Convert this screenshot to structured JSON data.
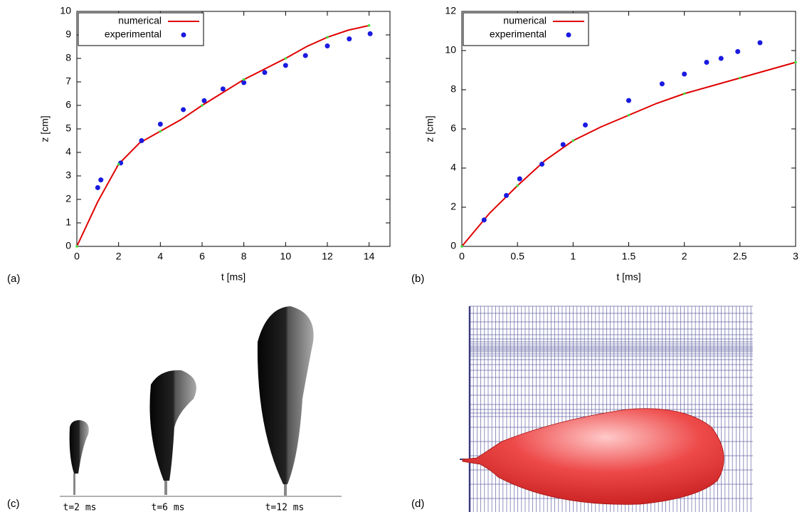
{
  "chart_data": [
    {
      "type": "line",
      "xlabel": "t [ms]",
      "ylabel": "z [cm]",
      "xlim": [
        0,
        15
      ],
      "xticks": [
        0,
        2,
        4,
        6,
        8,
        10,
        12,
        14
      ],
      "ylim": [
        0,
        10
      ],
      "yticks": [
        0,
        1,
        2,
        3,
        4,
        5,
        6,
        7,
        8,
        9,
        10
      ],
      "legend": "upper left",
      "series": [
        {
          "name": "numerical",
          "color": "#e00000",
          "kind": "line",
          "x": [
            0,
            1,
            2,
            3,
            4,
            5,
            6,
            7,
            8,
            9,
            10,
            11,
            12,
            13,
            14
          ],
          "values": [
            0,
            1.9,
            3.5,
            4.4,
            4.9,
            5.4,
            6.0,
            6.55,
            7.1,
            7.55,
            8.0,
            8.5,
            8.9,
            9.2,
            9.4
          ]
        },
        {
          "name": "experimental",
          "color": "#1a1ae0",
          "kind": "scatter",
          "x": [
            1.0,
            1.15,
            2.1,
            3.1,
            4.0,
            5.1,
            6.1,
            7.0,
            8.0,
            9.0,
            10.0,
            10.95,
            12.0,
            13.05,
            14.05
          ],
          "values": [
            2.5,
            2.83,
            3.55,
            4.5,
            5.2,
            5.82,
            6.2,
            6.7,
            6.97,
            7.4,
            7.7,
            8.12,
            8.53,
            8.83,
            9.05
          ]
        },
        {
          "color": "#40e040",
          "kind": "points",
          "x": [
            0,
            2,
            4,
            6,
            8,
            10,
            12,
            14
          ],
          "values": [
            0,
            3.5,
            4.9,
            6.0,
            7.1,
            8.0,
            8.9,
            9.4
          ]
        }
      ]
    },
    {
      "type": "line",
      "xlabel": "t [ms]",
      "ylabel": "z [cm]",
      "xlim": [
        0,
        3
      ],
      "xticks": [
        0,
        0.5,
        1,
        1.5,
        2,
        2.5,
        3
      ],
      "ylim": [
        0,
        12
      ],
      "yticks": [
        0,
        2,
        4,
        6,
        8,
        10,
        12
      ],
      "legend": "upper left",
      "series": [
        {
          "name": "numerical",
          "color": "#e00000",
          "kind": "line",
          "x": [
            0,
            0.25,
            0.5,
            0.75,
            1.0,
            1.25,
            1.5,
            1.75,
            2.0,
            2.25,
            2.5,
            2.75,
            3.0
          ],
          "values": [
            0,
            1.7,
            3.1,
            4.4,
            5.4,
            6.1,
            6.7,
            7.3,
            7.8,
            8.2,
            8.6,
            9.0,
            9.4
          ]
        },
        {
          "name": "experimental",
          "color": "#1a1ae0",
          "kind": "scatter",
          "x": [
            0.2,
            0.4,
            0.52,
            0.72,
            0.91,
            1.11,
            1.5,
            1.8,
            2.0,
            2.2,
            2.33,
            2.48,
            2.68
          ],
          "values": [
            1.35,
            2.6,
            3.45,
            4.2,
            5.2,
            6.2,
            7.45,
            8.3,
            8.8,
            9.4,
            9.6,
            9.95,
            10.4
          ]
        },
        {
          "color": "#40e040",
          "kind": "points",
          "x": [
            0,
            0.5,
            1.0,
            1.5,
            2.0,
            2.5,
            3.0
          ],
          "values": [
            0,
            3.1,
            5.4,
            6.7,
            7.8,
            8.6,
            9.4
          ]
        }
      ]
    }
  ],
  "panel_labels": [
    "(a)",
    "(b)",
    "(c)",
    "(d)"
  ],
  "image_captions": [
    "t=2 ms",
    "t=6 ms",
    "t=12 ms"
  ]
}
